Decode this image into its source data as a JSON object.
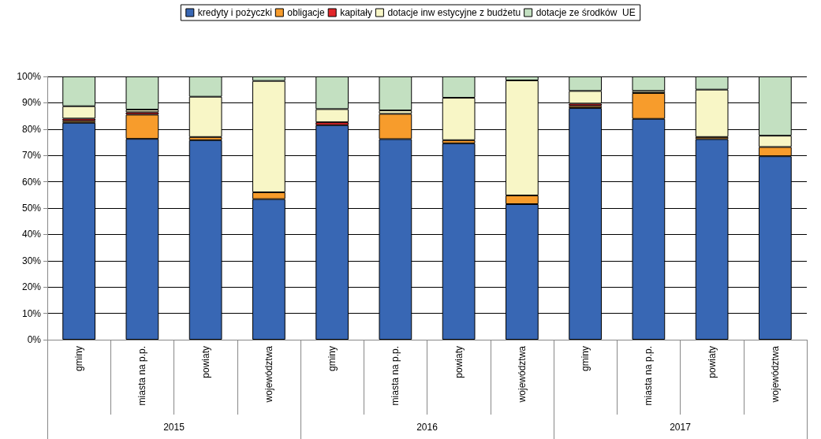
{
  "chart_data": {
    "type": "bar",
    "stacked": true,
    "categories": [
      "gminy",
      "miasta na p.p.",
      "powiaty",
      "województwa",
      "gminy",
      "miasta na p.p.",
      "powiaty",
      "województwa",
      "gminy",
      "miasta na p.p.",
      "powiaty",
      "województwa"
    ],
    "annotations": [
      "2015",
      "2016",
      "2017"
    ],
    "series": [
      {
        "name": "kredyty i pożyczki",
        "color": "#3867b4",
        "values": [
          82.4,
          76.3,
          75.8,
          53.4,
          81.5,
          76.2,
          74.6,
          51.5,
          88.0,
          83.9,
          76.2,
          69.7
        ]
      },
      {
        "name": "obligacje",
        "color": "#f79c2c",
        "values": [
          0.7,
          9.2,
          1.2,
          2.6,
          null,
          9.6,
          1.2,
          3.3,
          0.8,
          9.8,
          0.8,
          3.5
        ]
      },
      {
        "name": "kapitały",
        "color": "#e3262a",
        "values": [
          0.9,
          0.9,
          0,
          0,
          1.1,
          0,
          0,
          0,
          0.9,
          0,
          0,
          0
        ]
      },
      {
        "name": "dotacje inw estycyjne z budżetu",
        "color": "#f8f6c6",
        "values": [
          4.7,
          1.0,
          15.3,
          42.3,
          5.0,
          1.3,
          16.1,
          43.7,
          4.8,
          0.8,
          18.0,
          4.3
        ]
      },
      {
        "name": "dotacje ze środków  UE",
        "color": "#c3e0c1",
        "values": [
          11.3,
          12.6,
          7.7,
          1.7,
          12.4,
          12.9,
          8.1,
          1.5,
          5.5,
          5.5,
          5.0,
          22.5
        ]
      }
    ],
    "ylim": [
      0,
      100
    ],
    "yticks": [
      {
        "value": 0,
        "label": "0%"
      },
      {
        "value": 10,
        "label": "10%"
      },
      {
        "value": 20,
        "label": "20%"
      },
      {
        "value": 30,
        "label": "30%"
      },
      {
        "value": 40,
        "label": "40%"
      },
      {
        "value": 50,
        "label": "50%"
      },
      {
        "value": 60,
        "label": "60%"
      },
      {
        "value": 70,
        "label": "70%"
      },
      {
        "value": 80,
        "label": "80%"
      },
      {
        "value": 90,
        "label": "90%"
      },
      {
        "value": 100,
        "label": "100%"
      }
    ],
    "grid": "y",
    "legend": "top"
  }
}
